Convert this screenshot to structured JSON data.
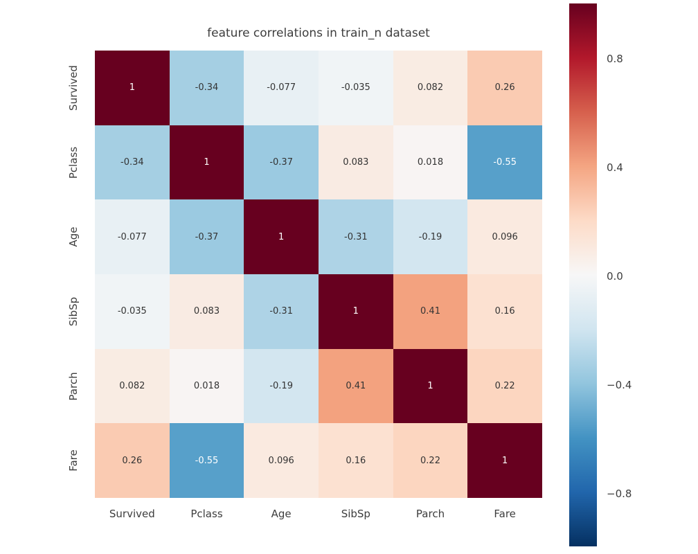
{
  "chart_data": {
    "type": "heatmap",
    "title": "feature correlations in train_n dataset",
    "categories": [
      "Survived",
      "Pclass",
      "Age",
      "SibSp",
      "Parch",
      "Fare"
    ],
    "matrix": [
      [
        1,
        -0.34,
        -0.077,
        -0.035,
        0.082,
        0.26
      ],
      [
        -0.34,
        1,
        -0.37,
        0.083,
        0.018,
        -0.55
      ],
      [
        -0.077,
        -0.37,
        1,
        -0.31,
        -0.19,
        0.096
      ],
      [
        -0.035,
        0.083,
        -0.31,
        1,
        0.41,
        0.16
      ],
      [
        0.082,
        0.018,
        -0.19,
        0.41,
        1,
        0.22
      ],
      [
        0.26,
        -0.55,
        0.096,
        0.16,
        0.22,
        1
      ]
    ],
    "annotations": [
      [
        "1",
        "-0.34",
        "-0.077",
        "-0.035",
        "0.082",
        "0.26"
      ],
      [
        "-0.34",
        "1",
        "-0.37",
        "0.083",
        "0.018",
        "-0.55"
      ],
      [
        "-0.077",
        "-0.37",
        "1",
        "-0.31",
        "-0.19",
        "0.096"
      ],
      [
        "-0.035",
        "0.083",
        "-0.31",
        "1",
        "0.41",
        "0.16"
      ],
      [
        "0.082",
        "0.018",
        "-0.19",
        "0.41",
        "1",
        "0.22"
      ],
      [
        "0.26",
        "-0.55",
        "0.096",
        "0.16",
        "0.22",
        "1"
      ]
    ],
    "vmin": -1,
    "vmax": 1,
    "colormap": "RdBu_r",
    "colormap_anchors": [
      "#053061",
      "#2166ac",
      "#4393c3",
      "#92c5de",
      "#d1e5f0",
      "#f7f7f7",
      "#fddbc7",
      "#f4a582",
      "#d6604d",
      "#b2182b",
      "#67001f"
    ],
    "colorbar_ticks": [
      {
        "label": "0.8",
        "value": 0.8
      },
      {
        "label": "0.4",
        "value": 0.4
      },
      {
        "label": "0.0",
        "value": 0.0
      },
      {
        "label": "−0.4",
        "value": -0.4
      },
      {
        "label": "−0.8",
        "value": -0.8
      }
    ],
    "legend_position": "right-colorbar",
    "grid": false,
    "annotation_color_dark": "#333333",
    "annotation_color_light": "#ffffff",
    "tick_color": "#3d3d3d"
  }
}
